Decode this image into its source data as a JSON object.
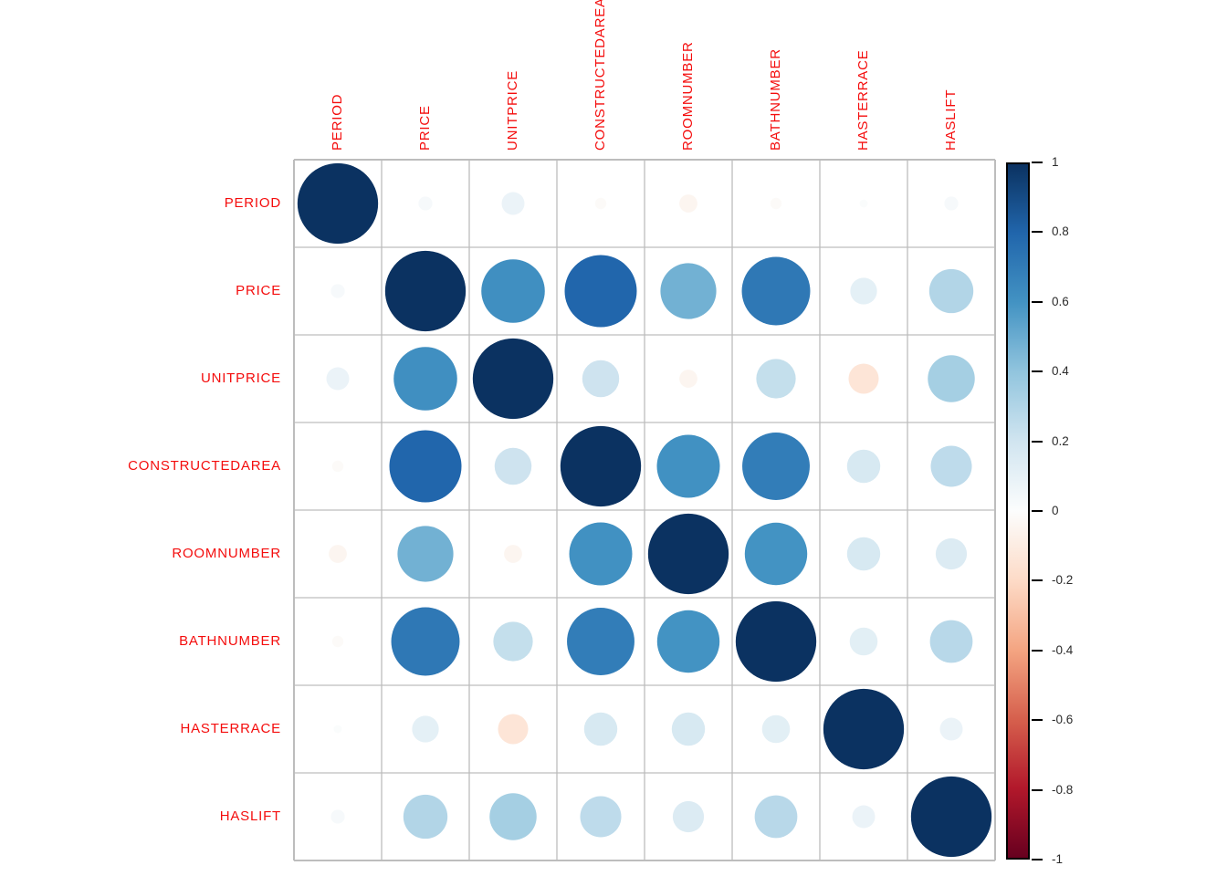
{
  "chart_data": {
    "type": "heatmap",
    "subtype": "correlation-matrix-circles",
    "title": "",
    "variables": [
      "PERIOD",
      "PRICE",
      "UNITPRICE",
      "CONSTRUCTEDAREA",
      "ROOMNUMBER",
      "BATHNUMBER",
      "HASTERRACE",
      "HASLIFT"
    ],
    "matrix": [
      [
        1.0,
        0.03,
        0.08,
        -0.02,
        -0.05,
        -0.02,
        0.01,
        0.03
      ],
      [
        0.03,
        1.0,
        0.62,
        0.8,
        0.48,
        0.72,
        0.11,
        0.3
      ],
      [
        0.08,
        0.62,
        1.0,
        0.21,
        -0.05,
        0.24,
        -0.14,
        0.34
      ],
      [
        -0.02,
        0.8,
        0.21,
        1.0,
        0.61,
        0.7,
        0.17,
        0.26
      ],
      [
        -0.05,
        0.48,
        -0.05,
        0.61,
        1.0,
        0.6,
        0.17,
        0.15
      ],
      [
        -0.02,
        0.72,
        0.24,
        0.7,
        0.6,
        1.0,
        0.12,
        0.28
      ],
      [
        0.01,
        0.11,
        -0.14,
        0.17,
        0.17,
        0.12,
        1.0,
        0.08
      ],
      [
        0.03,
        0.3,
        0.34,
        0.26,
        0.15,
        0.28,
        0.08,
        1.0
      ]
    ],
    "value_range": [
      -1,
      1
    ],
    "grid": true,
    "legend_position": "right",
    "colorbar": {
      "tick_labels": [
        "1",
        "0.8",
        "0.6",
        "0.4",
        "0.2",
        "0",
        "-0.2",
        "-0.4",
        "-0.6",
        "-0.8",
        "-1"
      ],
      "tick_values": [
        1,
        0.8,
        0.6,
        0.4,
        0.2,
        0,
        -0.2,
        -0.4,
        -0.6,
        -0.8,
        -1
      ]
    },
    "palette": {
      "name": "RdBu",
      "stop_values": [
        1,
        0.8,
        0.6,
        0.4,
        0.2,
        0,
        -0.2,
        -0.4,
        -0.6,
        -0.8,
        -1
      ],
      "stop_colors": [
        "#0B3261",
        "#2166AC",
        "#4393C3",
        "#92C5DE",
        "#D1E5F0",
        "#FCFDFD",
        "#FDDBC7",
        "#F4A582",
        "#D6604D",
        "#B2182B",
        "#67001F"
      ]
    },
    "styles": {
      "variable_label_color": "#F40D0D",
      "colorbar_label_color": "#2B2B2B",
      "grid_line_color": "#BDBDBD",
      "background": "#FFFFFF"
    }
  }
}
